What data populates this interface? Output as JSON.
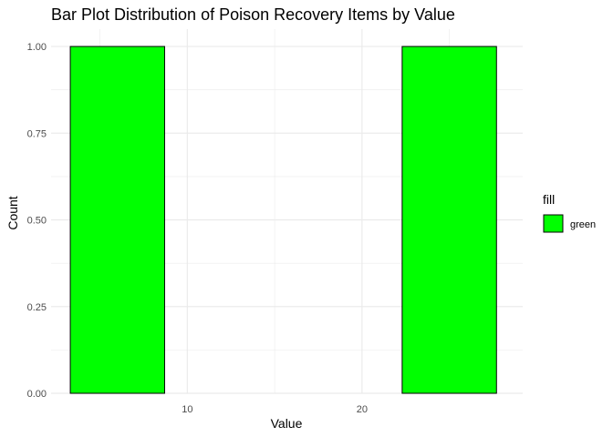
{
  "chart_data": {
    "type": "bar",
    "title": "Bar Plot Distribution of Poison Recovery Items by Value",
    "xlabel": "Value",
    "ylabel": "Count",
    "xlim": [
      2.2,
      29.2
    ],
    "ylim": [
      0,
      1.05
    ],
    "x_ticks": [
      10,
      20
    ],
    "y_ticks": [
      0,
      0.25,
      0.5,
      0.75,
      1
    ],
    "y_tick_labels": [
      "0.00",
      "0.25",
      "0.50",
      "0.75",
      "1.00"
    ],
    "grid": true,
    "bars": [
      {
        "x_start": 3.3,
        "x_end": 8.7,
        "value": 1
      },
      {
        "x_start": 22.3,
        "x_end": 27.7,
        "value": 1
      }
    ],
    "colors": {
      "fill": "#00ff00",
      "border": "#000000",
      "grid": "#ebebeb"
    },
    "legend": {
      "title": "fill",
      "placement": "right",
      "entries": [
        {
          "label": "green",
          "color": "#00ff00"
        }
      ]
    }
  }
}
